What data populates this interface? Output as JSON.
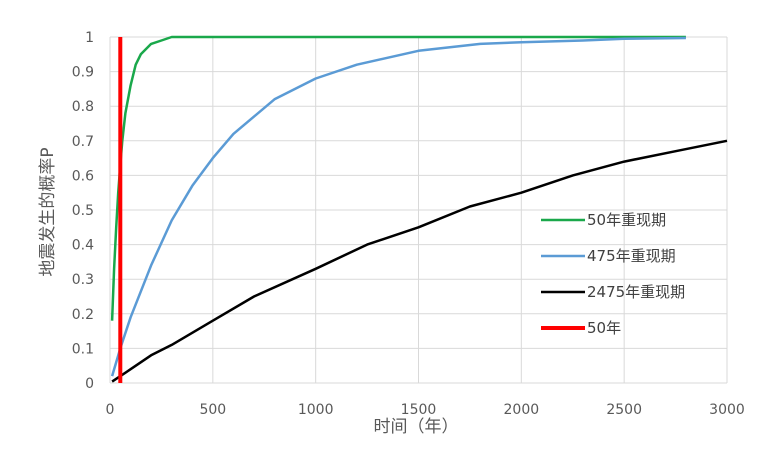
{
  "chart_data": {
    "type": "line",
    "title": "",
    "xlabel": "时间（年）",
    "ylabel": "地震发生的概率P",
    "xlim": [
      0,
      3000
    ],
    "ylim": [
      0,
      1
    ],
    "xticks": [
      0,
      500,
      1000,
      1500,
      2000,
      2500,
      3000
    ],
    "yticks": [
      0,
      0.1,
      0.2,
      0.3,
      0.4,
      0.5,
      0.6,
      0.7,
      0.8,
      0.9,
      1
    ],
    "grid": true,
    "legend_position": "right",
    "series": [
      {
        "name": "50年重现期",
        "color": "#1aa84b",
        "x": [
          10,
          20,
          30,
          40,
          50,
          60,
          75,
          100,
          125,
          150,
          200,
          250,
          300,
          400,
          500,
          1000,
          1500,
          2000,
          2500,
          2800
        ],
        "y": [
          0.18,
          0.33,
          0.45,
          0.55,
          0.63,
          0.7,
          0.78,
          0.86,
          0.92,
          0.95,
          0.98,
          0.99,
          1.0,
          1.0,
          1.0,
          1.0,
          1.0,
          1.0,
          1.0,
          1.0
        ]
      },
      {
        "name": "475年重现期",
        "color": "#5b9bd5",
        "x": [
          10,
          50,
          100,
          200,
          300,
          400,
          500,
          600,
          700,
          800,
          1000,
          1200,
          1500,
          1800,
          2000,
          2300,
          2500,
          2800
        ],
        "y": [
          0.02,
          0.1,
          0.19,
          0.34,
          0.47,
          0.57,
          0.65,
          0.72,
          0.77,
          0.82,
          0.88,
          0.92,
          0.96,
          0.98,
          0.985,
          0.99,
          0.995,
          0.997
        ]
      },
      {
        "name": "2475年重现期",
        "color": "#000000",
        "x": [
          10,
          100,
          200,
          300,
          500,
          700,
          1000,
          1250,
          1500,
          1750,
          2000,
          2250,
          2500,
          2750,
          3000
        ],
        "y": [
          0.004,
          0.04,
          0.08,
          0.11,
          0.18,
          0.25,
          0.33,
          0.4,
          0.45,
          0.51,
          0.55,
          0.6,
          0.64,
          0.67,
          0.7
        ]
      },
      {
        "name": "50年",
        "color": "#ff0000",
        "x": [
          50,
          50
        ],
        "y": [
          0,
          1
        ]
      }
    ]
  }
}
